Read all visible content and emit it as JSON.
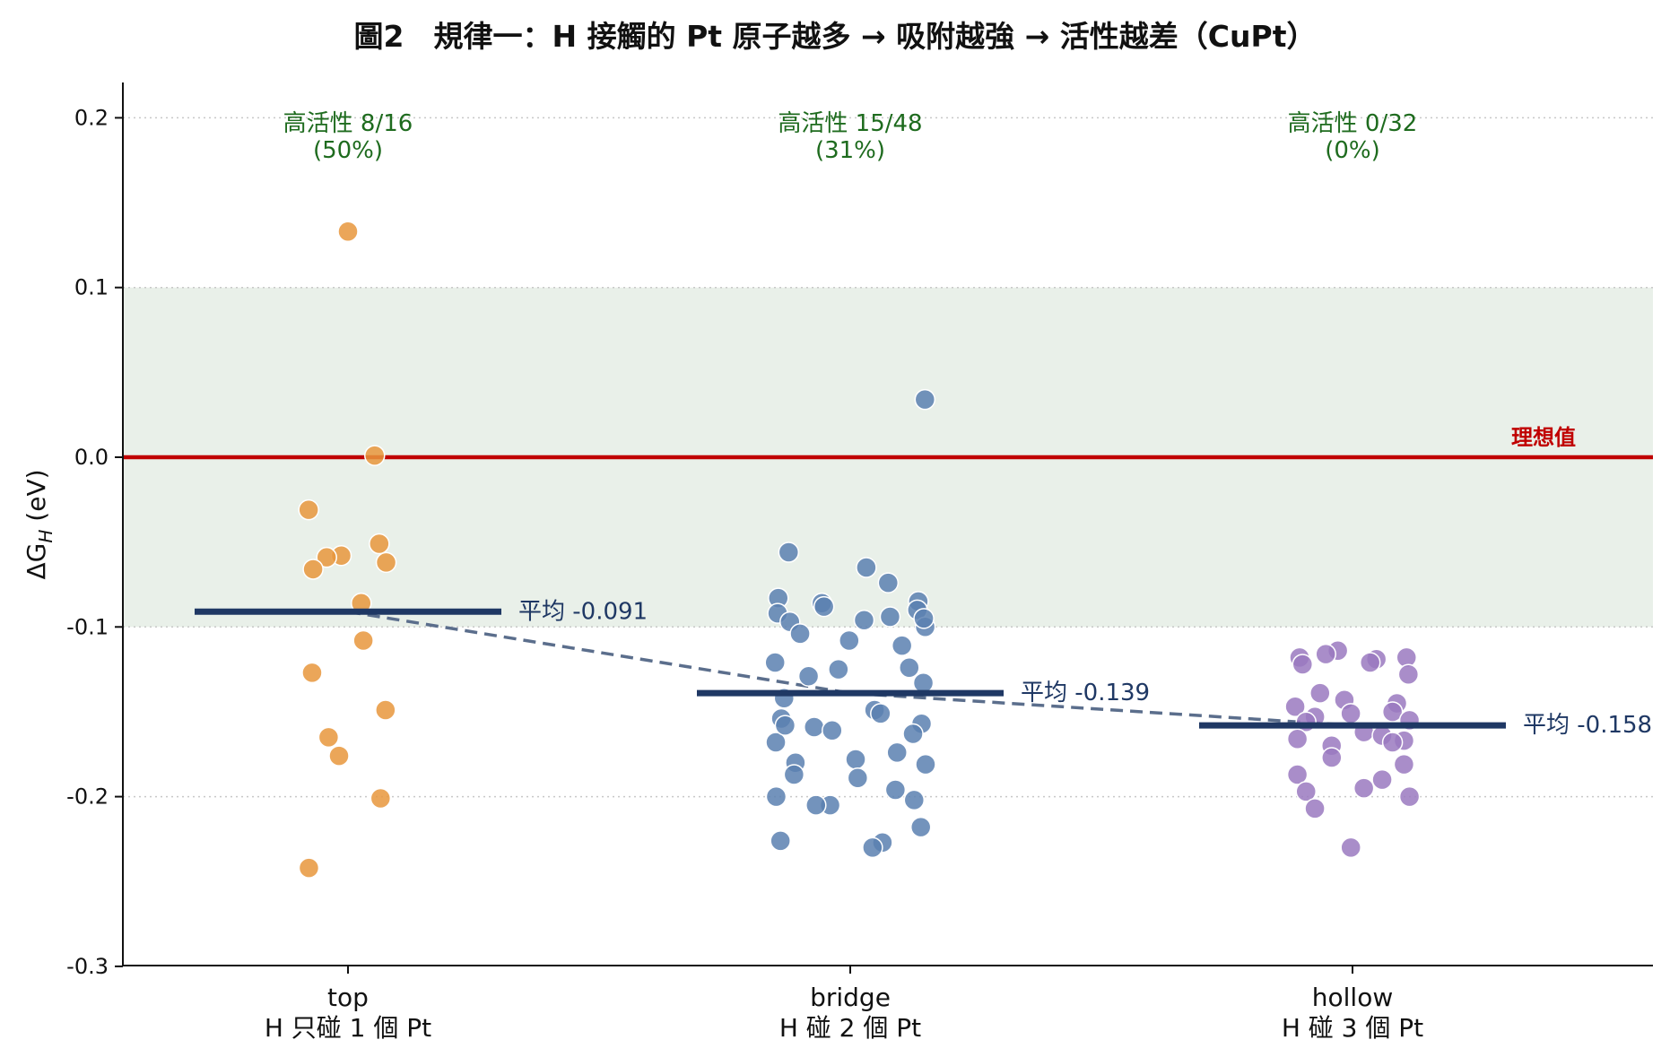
{
  "chart_data": {
    "type": "scatter",
    "title": "圖2　規律一：H 接觸的 Pt 原子越多 → 吸附越強 → 活性越差（CuPt）",
    "ylabel": "ΔG_H (eV)",
    "ylabel_main": "ΔG",
    "ylabel_sub": "H",
    "ylabel_unit": " (eV)",
    "ylim": [
      -0.3,
      0.22
    ],
    "yticks": [
      0.2,
      0.1,
      0.0,
      -0.1,
      -0.2,
      -0.3
    ],
    "ytick_labels": [
      "0.2",
      "0.1",
      "0.0",
      "-0.1",
      "-0.2",
      "-0.3"
    ],
    "grid": "horizontal dotted",
    "active_band": [
      -0.1,
      0.1
    ],
    "ideal_line": {
      "y": 0.0,
      "label": "理想值"
    },
    "trend_line": "dashed line through group means",
    "colors": {
      "top": "#E8963C",
      "bridge": "#5B80B0",
      "hollow": "#9A79BF",
      "mean_line": "#1F3864",
      "ideal": "#C00000",
      "band": "#E9F0E9",
      "annotation": "#1E6B1E"
    },
    "categories": [
      {
        "name": "top",
        "sub": "H 只碰 1 個 Pt"
      },
      {
        "name": "bridge",
        "sub": "H 碰 2 個 Pt"
      },
      {
        "name": "hollow",
        "sub": "H 碰 3 個 Pt"
      }
    ],
    "series": [
      {
        "name": "top",
        "mean": -0.091,
        "mean_label": "平均 -0.091",
        "active_label": "高活性 8/16",
        "active_pct": "(50%)",
        "values": [
          0.133,
          0.001,
          -0.031,
          -0.051,
          -0.058,
          -0.059,
          -0.062,
          -0.066,
          -0.086,
          -0.108,
          -0.127,
          -0.149,
          -0.165,
          -0.176,
          -0.201,
          -0.242
        ]
      },
      {
        "name": "bridge",
        "mean": -0.139,
        "mean_label": "平均 -0.139",
        "active_label": "高活性 15/48",
        "active_pct": "(31%)",
        "values": [
          0.034,
          -0.056,
          -0.065,
          -0.074,
          -0.083,
          -0.085,
          -0.086,
          -0.088,
          -0.09,
          -0.092,
          -0.094,
          -0.096,
          -0.097,
          -0.1,
          -0.104,
          -0.108,
          -0.111,
          -0.121,
          -0.124,
          -0.125,
          -0.129,
          -0.133,
          -0.142,
          -0.149,
          -0.151,
          -0.154,
          -0.157,
          -0.159,
          -0.161,
          -0.163,
          -0.168,
          -0.174,
          -0.178,
          -0.18,
          -0.181,
          -0.187,
          -0.189,
          -0.196,
          -0.2,
          -0.202,
          -0.205,
          -0.205,
          -0.218,
          -0.226,
          -0.227,
          -0.23,
          -0.158,
          -0.095
        ]
      },
      {
        "name": "hollow",
        "mean": -0.158,
        "mean_label": "平均 -0.158",
        "active_label": "高活性 0/32",
        "active_pct": "(0%)",
        "values": [
          -0.114,
          -0.116,
          -0.118,
          -0.118,
          -0.119,
          -0.121,
          -0.122,
          -0.128,
          -0.139,
          -0.143,
          -0.145,
          -0.147,
          -0.15,
          -0.151,
          -0.153,
          -0.155,
          -0.156,
          -0.162,
          -0.164,
          -0.166,
          -0.167,
          -0.17,
          -0.177,
          -0.181,
          -0.187,
          -0.19,
          -0.195,
          -0.197,
          -0.2,
          -0.207,
          -0.23,
          -0.168
        ]
      }
    ]
  }
}
